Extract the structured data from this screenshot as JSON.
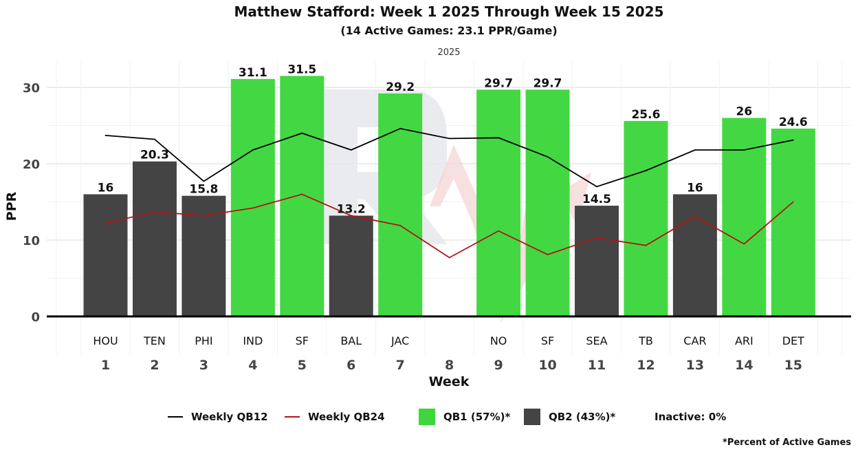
{
  "colors": {
    "qb1": "#3dd73d",
    "qb2": "#444444",
    "qb12_line": "#000000",
    "qb24_line": "#b01515",
    "grid": "#ebebeb",
    "watermark_r": "#e6e8ec",
    "watermark_arrow": "#f4d3d3"
  },
  "chart_data": {
    "type": "bar",
    "title": "Matthew Stafford: Week 1 2025 Through Week 15 2025",
    "subtitle": "(14 Active Games: 23.1 PPR/Game)",
    "facet_label": "2025",
    "xlabel": "Week",
    "ylabel": "PPR",
    "ylim": [
      0,
      33
    ],
    "yticks": [
      0,
      10,
      20,
      30
    ],
    "grid": true,
    "legend_position": "bottom",
    "weeks": [
      "1",
      "2",
      "3",
      "4",
      "5",
      "6",
      "7",
      "8",
      "9",
      "10",
      "11",
      "12",
      "13",
      "14",
      "15"
    ],
    "opponents": [
      "HOU",
      "TEN",
      "PHI",
      "IND",
      "SF",
      "BAL",
      "JAC",
      "",
      "NO",
      "SF",
      "SEA",
      "TB",
      "CAR",
      "ARI",
      "DET"
    ],
    "bars": [
      {
        "week": 1,
        "value": 16,
        "label": "16",
        "tier": "QB2"
      },
      {
        "week": 2,
        "value": 20.3,
        "label": "20.3",
        "tier": "QB2"
      },
      {
        "week": 3,
        "value": 15.8,
        "label": "15.8",
        "tier": "QB2"
      },
      {
        "week": 4,
        "value": 31.1,
        "label": "31.1",
        "tier": "QB1"
      },
      {
        "week": 5,
        "value": 31.5,
        "label": "31.5",
        "tier": "QB1"
      },
      {
        "week": 6,
        "value": 13.2,
        "label": "13.2",
        "tier": "QB2"
      },
      {
        "week": 7,
        "value": 29.2,
        "label": "29.2",
        "tier": "QB1"
      },
      {
        "week": 9,
        "value": 29.7,
        "label": "29.7",
        "tier": "QB1"
      },
      {
        "week": 10,
        "value": 29.7,
        "label": "29.7",
        "tier": "QB1"
      },
      {
        "week": 11,
        "value": 14.5,
        "label": "14.5",
        "tier": "QB2"
      },
      {
        "week": 12,
        "value": 25.6,
        "label": "25.6",
        "tier": "QB1"
      },
      {
        "week": 13,
        "value": 16,
        "label": "16",
        "tier": "QB2"
      },
      {
        "week": 14,
        "value": 26,
        "label": "26",
        "tier": "QB1"
      },
      {
        "week": 15,
        "value": 24.6,
        "label": "24.6",
        "tier": "QB1"
      }
    ],
    "series": [
      {
        "name": "Weekly QB12",
        "values": [
          23.7,
          23.2,
          17.7,
          21.8,
          24.0,
          21.8,
          24.6,
          23.3,
          23.4,
          20.9,
          17.0,
          19.1,
          21.8,
          21.8,
          23.1
        ]
      },
      {
        "name": "Weekly QB24",
        "values": [
          12.2,
          13.7,
          13.2,
          14.2,
          16.0,
          13.2,
          11.9,
          7.7,
          11.2,
          8.1,
          10.3,
          9.3,
          13.1,
          9.5,
          15.0
        ]
      }
    ],
    "legend": {
      "qb12": "Weekly QB12",
      "qb24": "Weekly QB24",
      "qb1": "QB1 (57%)*",
      "qb2": "QB2 (43%)*",
      "inactive": "Inactive: 0%"
    },
    "footnote": "*Percent of Active Games"
  }
}
